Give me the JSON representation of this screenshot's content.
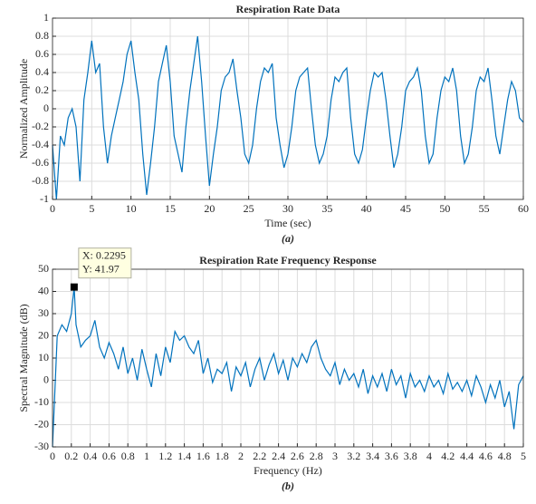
{
  "chart_data": [
    {
      "type": "line",
      "title": "Respiration Rate Data",
      "xlabel": "Time (sec)",
      "ylabel": "Normalized Amplitude",
      "caption": "(a)",
      "color": "#0072bd",
      "grid": true,
      "xlim": [
        0,
        60
      ],
      "ylim": [
        -1,
        1
      ],
      "xticks": [
        0,
        5,
        10,
        15,
        20,
        25,
        30,
        35,
        40,
        45,
        50,
        55,
        60
      ],
      "yticks": [
        -1,
        -0.8,
        -0.6,
        -0.4,
        -0.2,
        0,
        0.2,
        0.4,
        0.6,
        0.8,
        1
      ],
      "x": [
        0,
        0.5,
        1,
        1.5,
        2,
        2.5,
        3,
        3.5,
        4,
        4.5,
        5,
        5.5,
        6,
        6.5,
        7,
        7.5,
        8,
        8.5,
        9,
        9.5,
        10,
        10.5,
        11,
        11.5,
        12,
        12.5,
        13,
        13.5,
        14,
        14.5,
        15,
        15.5,
        16,
        16.5,
        17,
        17.5,
        18,
        18.5,
        19,
        19.5,
        20,
        20.5,
        21,
        21.5,
        22,
        22.5,
        23,
        23.5,
        24,
        24.5,
        25,
        25.5,
        26,
        26.5,
        27,
        27.5,
        28,
        28.5,
        29,
        29.5,
        30,
        30.5,
        31,
        31.5,
        32,
        32.5,
        33,
        33.5,
        34,
        34.5,
        35,
        35.5,
        36,
        36.5,
        37,
        37.5,
        38,
        38.5,
        39,
        39.5,
        40,
        40.5,
        41,
        41.5,
        42,
        42.5,
        43,
        43.5,
        44,
        44.5,
        45,
        45.5,
        46,
        46.5,
        47,
        47.5,
        48,
        48.5,
        49,
        49.5,
        50,
        50.5,
        51,
        51.5,
        52,
        52.5,
        53,
        53.5,
        54,
        54.5,
        55,
        55.5,
        56,
        56.5,
        57,
        57.5,
        58,
        58.5,
        59,
        59.5,
        60
      ],
      "values": [
        -0.4,
        -1,
        -0.3,
        -0.4,
        -0.1,
        0,
        -0.2,
        -0.8,
        0.1,
        0.4,
        0.75,
        0.4,
        0.5,
        -0.2,
        -0.6,
        -0.3,
        -0.1,
        0.1,
        0.3,
        0.6,
        0.75,
        0.4,
        0.1,
        -0.5,
        -0.95,
        -0.6,
        -0.2,
        0.3,
        0.5,
        0.7,
        0.3,
        -0.3,
        -0.5,
        -0.7,
        -0.2,
        0.2,
        0.5,
        0.8,
        0.3,
        -0.3,
        -0.85,
        -0.5,
        -0.2,
        0.2,
        0.35,
        0.4,
        0.55,
        0.2,
        -0.1,
        -0.5,
        -0.6,
        -0.4,
        0,
        0.3,
        0.45,
        0.4,
        0.5,
        -0.1,
        -0.4,
        -0.65,
        -0.5,
        -0.2,
        0.2,
        0.35,
        0.4,
        0.45,
        0,
        -0.4,
        -0.6,
        -0.5,
        -0.3,
        0.1,
        0.35,
        0.3,
        0.4,
        0.45,
        -0.1,
        -0.5,
        -0.6,
        -0.45,
        -0.1,
        0.2,
        0.4,
        0.35,
        0.4,
        0.1,
        -0.3,
        -0.65,
        -0.5,
        -0.2,
        0.2,
        0.3,
        0.35,
        0.45,
        0.2,
        -0.3,
        -0.6,
        -0.5,
        -0.1,
        0.2,
        0.35,
        0.3,
        0.45,
        0.2,
        -0.3,
        -0.6,
        -0.5,
        -0.2,
        0.2,
        0.35,
        0.3,
        0.45,
        0.1,
        -0.3,
        -0.5,
        -0.2,
        0.1,
        0.3,
        0.2,
        -0.1,
        -0.15
      ]
    },
    {
      "type": "line",
      "title": "Respiration Rate Frequency Response",
      "xlabel": "Frequency (Hz)",
      "ylabel": "Spectral Magnitude (dB)",
      "caption": "(b)",
      "color": "#0072bd",
      "grid": true,
      "xlim": [
        0,
        5
      ],
      "ylim": [
        -30,
        50
      ],
      "xticks": [
        0,
        0.2,
        0.4,
        0.6,
        0.8,
        1,
        1.2,
        1.4,
        1.6,
        1.8,
        2,
        2.2,
        2.4,
        2.6,
        2.8,
        3,
        3.2,
        3.4,
        3.6,
        3.8,
        4,
        4.2,
        4.4,
        4.6,
        4.8,
        5
      ],
      "yticks": [
        -30,
        -20,
        -10,
        0,
        10,
        20,
        30,
        40,
        50
      ],
      "x": [
        0,
        0.05,
        0.1,
        0.15,
        0.2,
        0.2295,
        0.25,
        0.3,
        0.35,
        0.4,
        0.45,
        0.5,
        0.55,
        0.6,
        0.65,
        0.7,
        0.75,
        0.8,
        0.85,
        0.9,
        0.95,
        1,
        1.05,
        1.1,
        1.15,
        1.2,
        1.25,
        1.3,
        1.35,
        1.4,
        1.45,
        1.5,
        1.55,
        1.6,
        1.65,
        1.7,
        1.75,
        1.8,
        1.85,
        1.9,
        1.95,
        2,
        2.05,
        2.1,
        2.15,
        2.2,
        2.25,
        2.3,
        2.35,
        2.4,
        2.45,
        2.5,
        2.55,
        2.6,
        2.65,
        2.7,
        2.75,
        2.8,
        2.85,
        2.9,
        2.95,
        3,
        3.05,
        3.1,
        3.15,
        3.2,
        3.25,
        3.3,
        3.35,
        3.4,
        3.45,
        3.5,
        3.55,
        3.6,
        3.65,
        3.7,
        3.75,
        3.8,
        3.85,
        3.9,
        3.95,
        4,
        4.05,
        4.1,
        4.15,
        4.2,
        4.25,
        4.3,
        4.35,
        4.4,
        4.45,
        4.5,
        4.55,
        4.6,
        4.65,
        4.7,
        4.75,
        4.8,
        4.85,
        4.9,
        4.95,
        5
      ],
      "values": [
        -30,
        20,
        25,
        22,
        30,
        41.97,
        25,
        15,
        18,
        20,
        27,
        15,
        10,
        17,
        12,
        5,
        15,
        3,
        10,
        0,
        14,
        5,
        -3,
        12,
        2,
        15,
        8,
        22,
        18,
        20,
        15,
        12,
        18,
        3,
        10,
        -1,
        5,
        3,
        8,
        -5,
        6,
        2,
        8,
        -3,
        5,
        10,
        0,
        7,
        12,
        3,
        9,
        0,
        10,
        6,
        12,
        8,
        15,
        18,
        10,
        5,
        2,
        8,
        -2,
        5,
        0,
        3,
        -3,
        5,
        -6,
        2,
        -3,
        3,
        -5,
        5,
        -2,
        2,
        -8,
        3,
        -3,
        0,
        -5,
        2,
        -3,
        0,
        -6,
        3,
        -4,
        -1,
        -5,
        0,
        -7,
        2,
        -3,
        -10,
        -2,
        -8,
        0,
        -12,
        -5,
        -22,
        -2,
        2
      ],
      "datatip": {
        "x": 0.2295,
        "y": 41.97,
        "label_x": "X: 0.2295",
        "label_y": "Y: 41.97"
      }
    }
  ]
}
